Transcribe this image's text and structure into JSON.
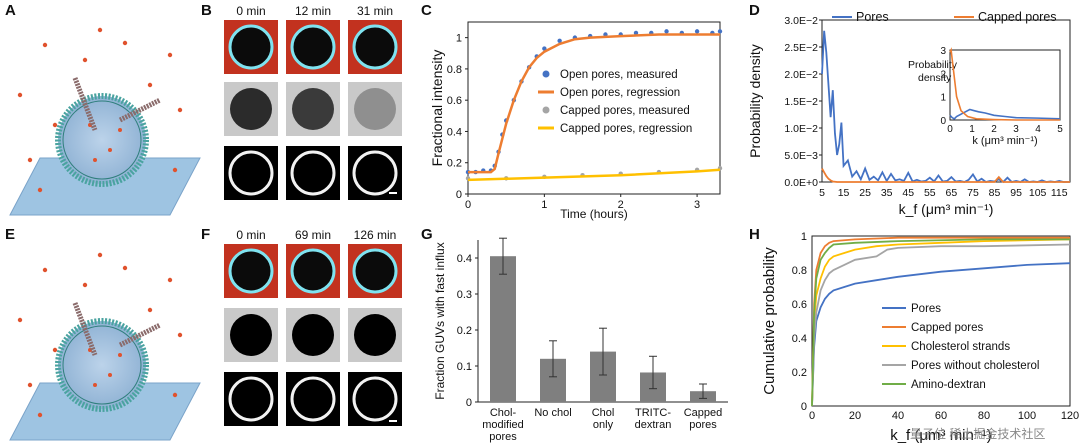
{
  "panels": {
    "A": "A",
    "B": "B",
    "C": "C",
    "D": "D",
    "E": "E",
    "F": "F",
    "G": "G",
    "H": "H"
  },
  "colors": {
    "open_pores": "#4472c4",
    "open_regression": "#ed7d31",
    "capped_measured": "#a5a5a5",
    "capped_regression": "#ffc000",
    "chol_strands": "#ffc000",
    "pores_no_chol": "#a5a5a5",
    "amino_dextran": "#70ad47",
    "bar": "#7f7f7f",
    "membrane": "#4aa3a0",
    "surface": "#9ec4e2",
    "dye": "#e0522d",
    "micro_red": "#c2321f",
    "ring": "#7fe3f0"
  },
  "panel_B": {
    "times": [
      "0 min",
      "12 min",
      "31 min"
    ]
  },
  "panel_F": {
    "times": [
      "0 min",
      "69 min",
      "126 min"
    ]
  },
  "watermark": "量子位 稀土掘金技术社区",
  "chart_data": [
    {
      "id": "C",
      "type": "line",
      "xlabel": "Time (hours)",
      "ylabel": "Fractional intensity",
      "xlim": [
        0,
        3.3
      ],
      "ylim": [
        0,
        1.1
      ],
      "xticks": [
        "0",
        "1",
        "2",
        "3"
      ],
      "yticks": [
        "0",
        "0.2",
        "0.4",
        "0.6",
        "0.8",
        "1"
      ],
      "legend": [
        "Open pores, measured",
        "Open pores, regression",
        "Capped pores, measured",
        "Capped pores, regression"
      ],
      "legend_position": "center-right",
      "series": [
        {
          "name": "Open pores, measured",
          "kind": "points",
          "x": [
            0,
            0.1,
            0.2,
            0.3,
            0.35,
            0.4,
            0.45,
            0.5,
            0.6,
            0.7,
            0.8,
            0.9,
            1.0,
            1.2,
            1.4,
            1.6,
            1.8,
            2.0,
            2.2,
            2.4,
            2.6,
            2.8,
            3.0,
            3.2,
            3.3
          ],
          "y": [
            0.14,
            0.14,
            0.15,
            0.15,
            0.18,
            0.27,
            0.38,
            0.47,
            0.6,
            0.72,
            0.81,
            0.88,
            0.93,
            0.98,
            1.0,
            1.01,
            1.02,
            1.02,
            1.03,
            1.03,
            1.04,
            1.03,
            1.04,
            1.03,
            1.04
          ]
        },
        {
          "name": "Open pores, regression",
          "kind": "line",
          "x": [
            0,
            0.3,
            0.35,
            0.4,
            0.5,
            0.6,
            0.7,
            0.8,
            0.9,
            1.0,
            1.2,
            1.4,
            1.6,
            2.0,
            2.5,
            3.0,
            3.3
          ],
          "y": [
            0.14,
            0.14,
            0.16,
            0.26,
            0.45,
            0.6,
            0.72,
            0.81,
            0.87,
            0.91,
            0.96,
            0.99,
            1.0,
            1.01,
            1.02,
            1.02,
            1.02
          ]
        },
        {
          "name": "Capped pores, measured",
          "kind": "points",
          "x": [
            0,
            0.5,
            1.0,
            1.5,
            2.0,
            2.5,
            3.0,
            3.3
          ],
          "y": [
            0.1,
            0.1,
            0.11,
            0.12,
            0.13,
            0.14,
            0.155,
            0.165
          ]
        },
        {
          "name": "Capped pores, regression",
          "kind": "line",
          "x": [
            0,
            1.0,
            2.0,
            3.0,
            3.3
          ],
          "y": [
            0.09,
            0.105,
            0.12,
            0.145,
            0.155
          ]
        }
      ]
    },
    {
      "id": "D",
      "type": "line",
      "xlabel": "k_f (μm³ min⁻¹)",
      "ylabel": "Probability density",
      "xlim": [
        5,
        120
      ],
      "ylim": [
        0,
        0.03
      ],
      "yticks": [
        "0.0E+0",
        "5.0E−3",
        "1.0E−2",
        "1.5E−2",
        "2.0E−2",
        "2.5E−2",
        "3.0E−2"
      ],
      "xticks": [
        "5",
        "15",
        "25",
        "35",
        "45",
        "55",
        "65",
        "75",
        "85",
        "95",
        "105",
        "115"
      ],
      "legend": [
        "Pores",
        "Capped pores"
      ],
      "legend_position": "top",
      "series": [
        {
          "name": "Pores",
          "x": [
            5,
            6,
            7,
            8,
            9,
            10,
            11,
            12,
            13,
            14,
            15,
            17,
            19,
            21,
            23,
            25,
            27,
            29,
            31,
            33,
            35,
            37,
            39,
            41,
            43,
            45,
            47,
            49,
            51,
            53,
            55,
            57,
            59,
            61,
            63,
            65,
            67,
            69,
            71,
            73,
            75,
            77,
            79,
            81,
            83,
            85,
            87,
            89,
            91,
            93,
            95,
            97,
            99,
            101,
            103,
            105,
            107,
            109,
            111,
            113,
            115,
            117,
            120
          ],
          "y": [
            0.02,
            0.028,
            0.024,
            0.018,
            0.012,
            0.017,
            0.009,
            0.005,
            0.007,
            0.011,
            0.003,
            0.004,
            0.001,
            0.002,
            0.0005,
            0.0025,
            0.0004,
            0.001,
            0.0003,
            0.0018,
            0.0002,
            0.0015,
            0.0003,
            0.0005,
            0.0002,
            0.0017,
            0.0001,
            0.0004,
            0.0001,
            0.0002,
            0.0008,
            0.0001,
            0.0012,
            0.0001,
            0.0002,
            0.0009,
            0.0001,
            0.0002,
            0.0,
            0.0004,
            0.0014,
            0.0001,
            0.0006,
            0.0,
            0.0002,
            0.0001,
            0.0005,
            0.0,
            0.0008,
            0.0,
            0.0002,
            0.0,
            0.0005,
            0.0,
            0.0001,
            0.0,
            0.0003,
            0.0,
            0.0001,
            0.0,
            0.0002,
            0.0,
            0.0
          ]
        },
        {
          "name": "Capped pores",
          "x": [
            5,
            6,
            7,
            8,
            9,
            10,
            12,
            15,
            20,
            30,
            40,
            60,
            80,
            85,
            87,
            89,
            100,
            120
          ],
          "y": [
            0.0025,
            0.0018,
            0.0011,
            0.0006,
            0.0003,
            0.0001,
            0.0,
            0.0,
            0.0,
            0.0,
            0.0,
            0.0,
            0.0,
            0.0,
            0.0009,
            0.0,
            0.0,
            0.0
          ]
        }
      ],
      "inset": {
        "ylabel": "Probability density",
        "xlabel": "k (μm³ min⁻¹)",
        "xlim": [
          0,
          5
        ],
        "ylim": [
          0,
          3
        ],
        "xticks": [
          "0",
          "1",
          "2",
          "3",
          "4",
          "5"
        ],
        "yticks": [
          "0",
          "1",
          "2",
          "3"
        ],
        "series": [
          {
            "name": "Pores",
            "x": [
              0,
              0.1,
              0.2,
              0.3,
              0.5,
              0.7,
              0.9,
              1.1,
              1.3,
              1.6,
              2.0,
              2.5,
              3,
              4,
              5
            ],
            "y": [
              0.2,
              0.1,
              0.05,
              0.15,
              0.25,
              0.35,
              0.45,
              0.4,
              0.35,
              0.3,
              0.2,
              0.15,
              0.1,
              0.08,
              0.05
            ]
          },
          {
            "name": "Capped pores",
            "x": [
              0,
              0.05,
              0.15,
              0.3,
              0.5,
              0.8,
              1.2,
              2,
              3,
              5
            ],
            "y": [
              2.9,
              3.2,
              2.2,
              1.0,
              0.4,
              0.15,
              0.05,
              0.02,
              0.0,
              0.0
            ]
          }
        ]
      }
    },
    {
      "id": "G",
      "type": "bar",
      "ylabel": "Fraction GUVs with fast influx",
      "ylim": [
        0,
        0.45
      ],
      "yticks": [
        "0",
        "0.1",
        "0.2",
        "0.3",
        "0.4"
      ],
      "categories": [
        [
          "Chol-",
          "modified",
          "pores"
        ],
        [
          "No chol"
        ],
        [
          "Chol",
          "only"
        ],
        [
          "TRITC-",
          "dextran"
        ],
        [
          "Capped",
          "pores"
        ]
      ],
      "values": [
        0.405,
        0.12,
        0.14,
        0.082,
        0.03
      ],
      "error": [
        0.05,
        0.05,
        0.065,
        0.045,
        0.02
      ]
    },
    {
      "id": "H",
      "type": "line",
      "xlabel": "k_f (μm³ min⁻¹)",
      "ylabel": "Cumulative probability",
      "xlim": [
        0,
        120
      ],
      "ylim": [
        0,
        1
      ],
      "xticks": [
        "0",
        "20",
        "40",
        "60",
        "80",
        "100",
        "120"
      ],
      "yticks": [
        "0",
        "0.2",
        "0.4",
        "0.6",
        "0.8",
        "1"
      ],
      "legend": [
        "Pores",
        "Capped pores",
        "Cholesterol strands",
        "Pores without cholesterol",
        "Amino-dextran"
      ],
      "legend_position": "bottom-right",
      "series": [
        {
          "name": "Pores",
          "x": [
            0,
            1,
            2,
            4,
            6,
            8,
            10,
            15,
            20,
            30,
            40,
            60,
            80,
            100,
            120
          ],
          "y": [
            0.0,
            0.35,
            0.5,
            0.58,
            0.63,
            0.66,
            0.68,
            0.7,
            0.72,
            0.74,
            0.76,
            0.79,
            0.81,
            0.83,
            0.84
          ]
        },
        {
          "name": "Capped pores",
          "x": [
            0,
            1,
            2,
            4,
            6,
            8,
            10,
            20,
            40,
            80,
            120
          ],
          "y": [
            0.0,
            0.6,
            0.8,
            0.9,
            0.94,
            0.96,
            0.97,
            0.98,
            0.99,
            0.99,
            0.99
          ]
        },
        {
          "name": "Cholesterol strands",
          "x": [
            0,
            1,
            2,
            4,
            6,
            8,
            10,
            15,
            20,
            30,
            40,
            60,
            80,
            120
          ],
          "y": [
            0.0,
            0.5,
            0.65,
            0.75,
            0.82,
            0.86,
            0.88,
            0.9,
            0.92,
            0.94,
            0.95,
            0.96,
            0.97,
            0.98
          ]
        },
        {
          "name": "Pores without cholesterol",
          "x": [
            0,
            1,
            2,
            4,
            6,
            8,
            10,
            15,
            20,
            30,
            35,
            40,
            60,
            80,
            120
          ],
          "y": [
            0.0,
            0.4,
            0.55,
            0.68,
            0.74,
            0.78,
            0.8,
            0.83,
            0.86,
            0.88,
            0.92,
            0.93,
            0.94,
            0.94,
            0.95
          ]
        },
        {
          "name": "Amino-dextran",
          "x": [
            0,
            1,
            2,
            4,
            6,
            8,
            10,
            20,
            40,
            80,
            120
          ],
          "y": [
            0.0,
            0.55,
            0.75,
            0.86,
            0.9,
            0.93,
            0.95,
            0.96,
            0.97,
            0.98,
            0.98
          ]
        }
      ]
    }
  ]
}
